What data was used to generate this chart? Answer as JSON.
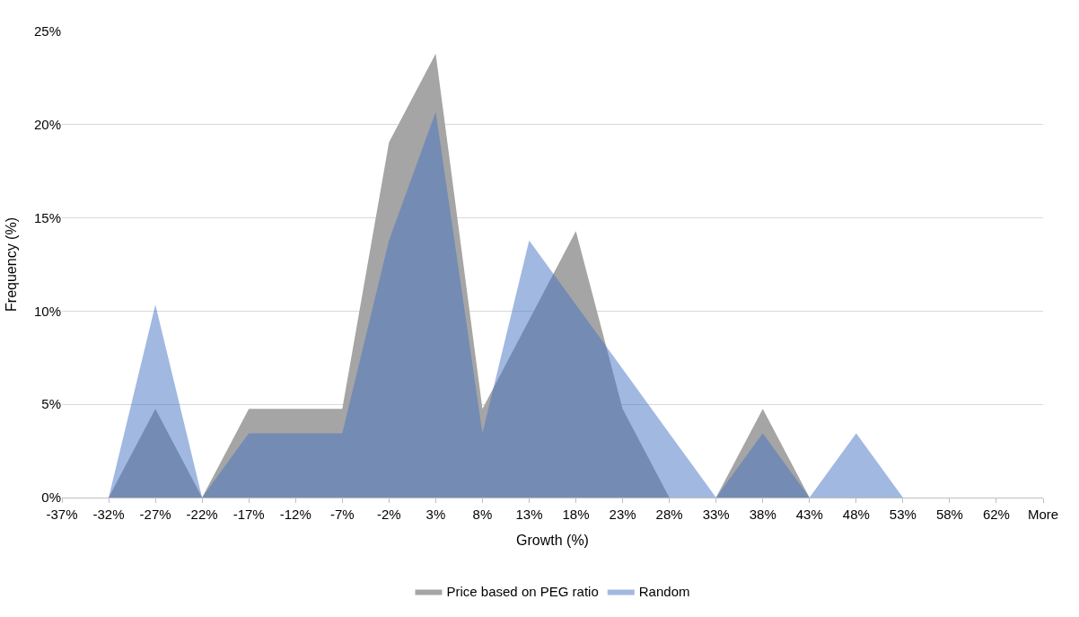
{
  "chart_data": {
    "type": "area",
    "xlabel": "Growth (%)",
    "ylabel": "Frequency (%)",
    "categories": [
      "-37%",
      "-32%",
      "-27%",
      "-22%",
      "-17%",
      "-12%",
      "-7%",
      "-2%",
      "3%",
      "8%",
      "13%",
      "18%",
      "23%",
      "28%",
      "33%",
      "38%",
      "43%",
      "48%",
      "53%",
      "58%",
      "62%",
      "More"
    ],
    "series": [
      {
        "name": "Price based on PEG ratio",
        "color": "#a5a5a5",
        "values": [
          0,
          0,
          4.76,
          0,
          4.76,
          4.76,
          4.76,
          19.05,
          23.81,
          4.76,
          9.52,
          14.29,
          4.76,
          0,
          0,
          4.76,
          0,
          0,
          0,
          0,
          0,
          0
        ]
      },
      {
        "name": "Random",
        "color": "#4472c4",
        "values": [
          0,
          0,
          10.34,
          0,
          3.45,
          3.45,
          3.45,
          13.79,
          20.69,
          3.45,
          13.79,
          10.34,
          6.9,
          3.45,
          0,
          3.45,
          0,
          3.45,
          0,
          0,
          0,
          0
        ]
      }
    ],
    "ylim": [
      0,
      25
    ],
    "yticks": [
      {
        "value": 0,
        "label": "0%"
      },
      {
        "value": 5,
        "label": "5%"
      },
      {
        "value": 10,
        "label": "10%"
      },
      {
        "value": 15,
        "label": "15%"
      },
      {
        "value": 20,
        "label": "20%"
      },
      {
        "value": 25,
        "label": "25%"
      }
    ],
    "grid": "y",
    "legend": "bottom"
  }
}
